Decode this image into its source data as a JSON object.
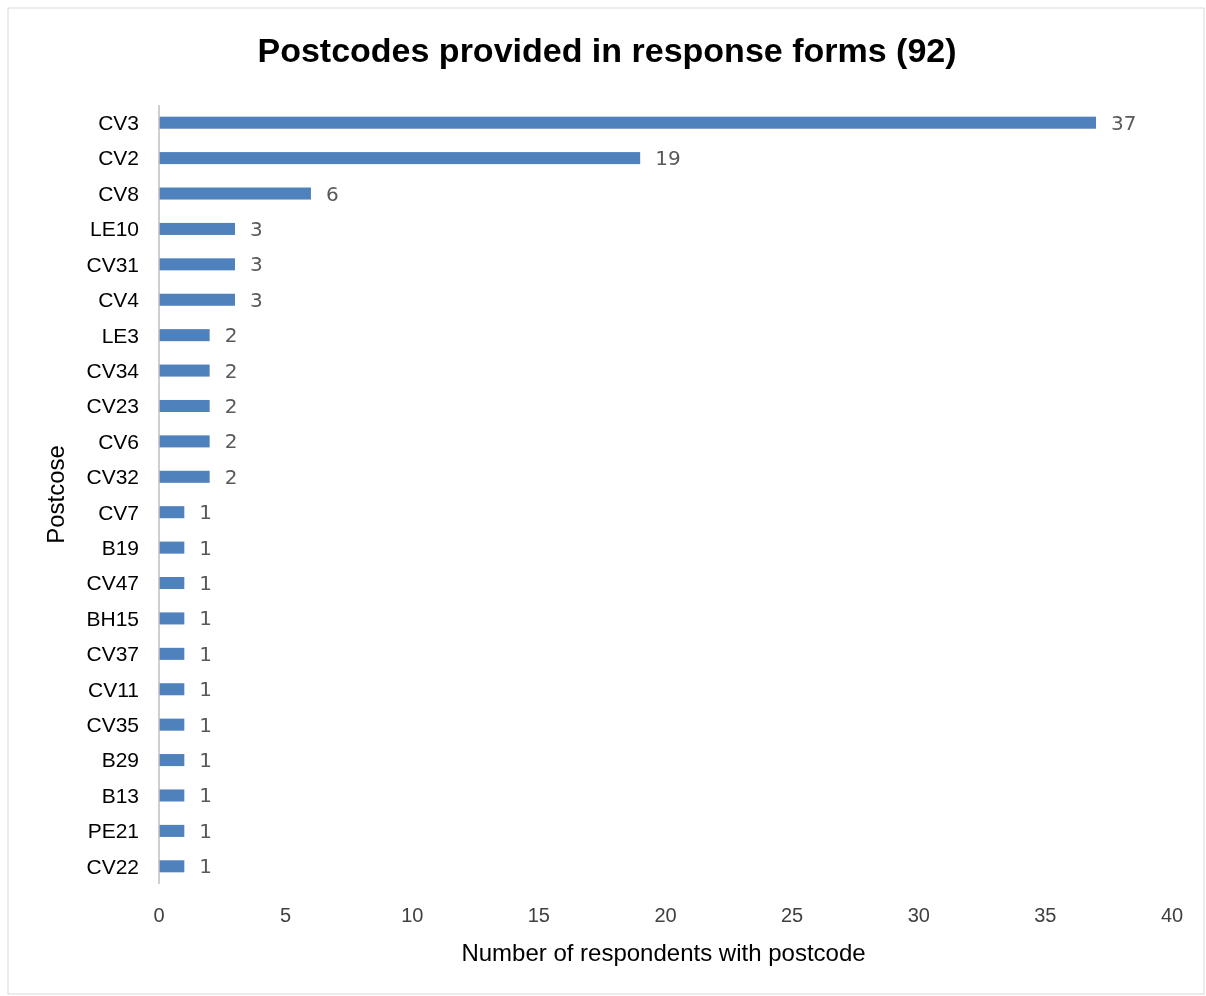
{
  "chart_data": {
    "type": "bar",
    "orientation": "horizontal",
    "title": "Postcodes provided in response forms (92)",
    "xlabel": "Number of respondents with postcode",
    "ylabel": "Postcose",
    "categories": [
      "CV3",
      "CV2",
      "CV8",
      "LE10",
      "CV31",
      "CV4",
      "LE3",
      "CV34",
      "CV23",
      "CV6",
      "CV32",
      "CV7",
      "B19",
      "CV47",
      "BH15",
      "CV37",
      "CV11",
      "CV35",
      "B29",
      "B13",
      "PE21",
      "CV22"
    ],
    "values": [
      37,
      19,
      6,
      3,
      3,
      3,
      2,
      2,
      2,
      2,
      2,
      1,
      1,
      1,
      1,
      1,
      1,
      1,
      1,
      1,
      1,
      1
    ],
    "color": "#4f81bd",
    "xlim": [
      0,
      40
    ],
    "xticks": [
      0,
      5,
      10,
      15,
      20,
      25,
      30,
      35,
      40
    ],
    "data_labels": true,
    "grid": false
  }
}
